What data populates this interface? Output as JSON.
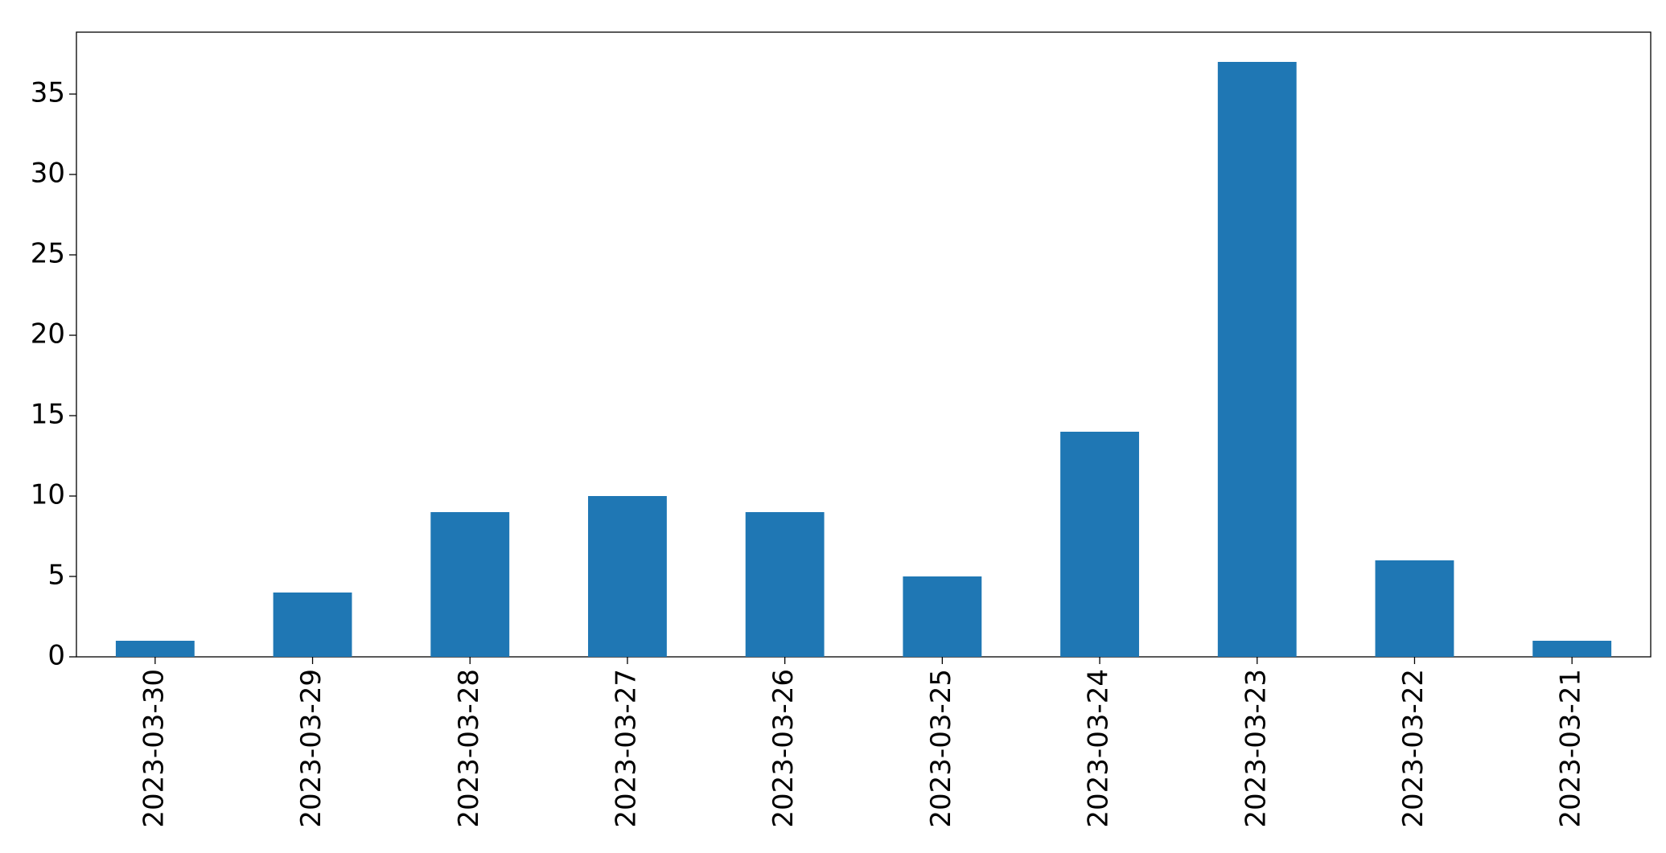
{
  "chart_data": {
    "type": "bar",
    "categories": [
      "2023-03-30",
      "2023-03-29",
      "2023-03-28",
      "2023-03-27",
      "2023-03-26",
      "2023-03-25",
      "2023-03-24",
      "2023-03-23",
      "2023-03-22",
      "2023-03-21"
    ],
    "values": [
      1,
      4,
      9,
      10,
      9,
      5,
      14,
      37,
      6,
      1
    ],
    "color": "#1f77b4",
    "ylim": [
      0,
      38.85
    ],
    "yticks": [
      0,
      5,
      10,
      15,
      20,
      25,
      30,
      35
    ],
    "grid": false
  }
}
